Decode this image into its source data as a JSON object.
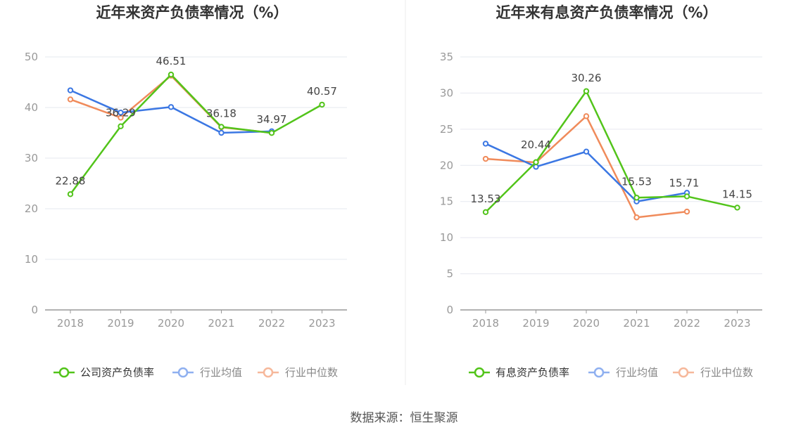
{
  "source_label": "数据来源：恒生聚源",
  "chart_data": [
    {
      "type": "line",
      "title": "近年来资产负债率情况（%）",
      "categories": [
        "2018",
        "2019",
        "2020",
        "2021",
        "2022",
        "2023"
      ],
      "ylim": [
        0,
        50
      ],
      "yticks": [
        0,
        10,
        20,
        30,
        40,
        50
      ],
      "grid": true,
      "legend": "bottom",
      "series": [
        {
          "name": "公司资产负债率",
          "color": "#52c41a",
          "values": [
            22.88,
            36.29,
            46.51,
            36.18,
            34.97,
            40.57
          ],
          "labels": [
            "22.88",
            "36.29",
            "46.51",
            "36.18",
            "34.97",
            "40.57"
          ]
        },
        {
          "name": "行业均值",
          "color": "#3b77e3",
          "values": [
            43.4,
            39.0,
            40.1,
            35.0,
            35.3,
            null
          ]
        },
        {
          "name": "行业中位数",
          "color": "#f08b5b",
          "values": [
            41.6,
            38.0,
            46.3,
            36.1,
            35.0,
            null
          ]
        }
      ]
    },
    {
      "type": "line",
      "title": "近年来有息资产负债率情况（%）",
      "categories": [
        "2018",
        "2019",
        "2020",
        "2021",
        "2022",
        "2023"
      ],
      "ylim": [
        0,
        35
      ],
      "yticks": [
        0,
        5,
        10,
        15,
        20,
        25,
        30,
        35
      ],
      "grid": true,
      "legend": "bottom",
      "series": [
        {
          "name": "有息资产负债率",
          "color": "#52c41a",
          "values": [
            13.53,
            20.44,
            30.26,
            15.53,
            15.71,
            14.15
          ],
          "labels": [
            "13.53",
            "20.44",
            "30.26",
            "15.53",
            "15.71",
            "14.15"
          ]
        },
        {
          "name": "行业均值",
          "color": "#3b77e3",
          "values": [
            23.0,
            19.8,
            21.9,
            15.0,
            16.2,
            null
          ]
        },
        {
          "name": "行业中位数",
          "color": "#f08b5b",
          "values": [
            20.9,
            20.4,
            26.8,
            12.8,
            13.6,
            null
          ]
        }
      ]
    }
  ]
}
